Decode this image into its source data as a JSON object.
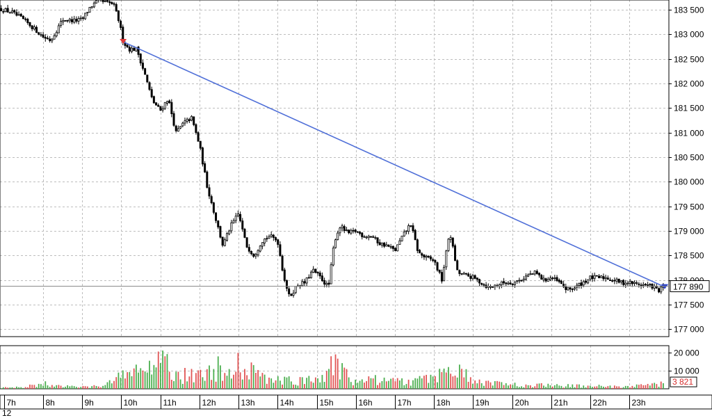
{
  "chart_data": [
    {
      "type": "candlestick",
      "x_unit": "hour",
      "x_ticks": [
        "7h",
        "8h",
        "9h",
        "10h",
        "11h",
        "12h",
        "13h",
        "14h",
        "15h",
        "16h",
        "17h",
        "18h",
        "19h",
        "20h",
        "21h",
        "22h",
        "23h"
      ],
      "date_label": "12",
      "y_ticks": [
        177000,
        177500,
        178000,
        178500,
        179000,
        179500,
        180000,
        180500,
        181000,
        181500,
        182000,
        182500,
        183000,
        183500
      ],
      "ylim": [
        176850,
        183700
      ],
      "grid": true,
      "last_price": 177890,
      "last_price_label": "177 890",
      "trendline": {
        "start": {
          "x": 10.05,
          "y": 182850
        },
        "end": {
          "x": 23.9,
          "y": 177860
        },
        "color": "#4f6fd8"
      },
      "close_path": [
        [
          6.9,
          183520
        ],
        [
          7.2,
          183450
        ],
        [
          7.5,
          183300
        ],
        [
          7.8,
          183100
        ],
        [
          8.0,
          182950
        ],
        [
          8.2,
          182880
        ],
        [
          8.5,
          183300
        ],
        [
          8.8,
          183280
        ],
        [
          9.0,
          183300
        ],
        [
          9.2,
          183550
        ],
        [
          9.4,
          183680
        ],
        [
          9.6,
          183650
        ],
        [
          9.8,
          183620
        ],
        [
          9.95,
          183250
        ],
        [
          10.05,
          182850
        ],
        [
          10.2,
          182700
        ],
        [
          10.4,
          182700
        ],
        [
          10.6,
          182200
        ],
        [
          10.8,
          181650
        ],
        [
          11.0,
          181450
        ],
        [
          11.2,
          181700
        ],
        [
          11.4,
          181000
        ],
        [
          11.6,
          181200
        ],
        [
          11.8,
          181300
        ],
        [
          12.0,
          180750
        ],
        [
          12.2,
          179900
        ],
        [
          12.4,
          179300
        ],
        [
          12.6,
          178700
        ],
        [
          12.8,
          179100
        ],
        [
          13.0,
          179350
        ],
        [
          13.2,
          178700
        ],
        [
          13.4,
          178500
        ],
        [
          13.6,
          178800
        ],
        [
          13.8,
          178900
        ],
        [
          14.0,
          178800
        ],
        [
          14.15,
          178100
        ],
        [
          14.3,
          177650
        ],
        [
          14.5,
          177900
        ],
        [
          14.7,
          177950
        ],
        [
          14.9,
          178200
        ],
        [
          15.1,
          178050
        ],
        [
          15.3,
          177850
        ],
        [
          15.45,
          178800
        ],
        [
          15.6,
          179100
        ],
        [
          15.8,
          178950
        ],
        [
          16.0,
          179000
        ],
        [
          16.2,
          178900
        ],
        [
          16.4,
          178900
        ],
        [
          16.6,
          178750
        ],
        [
          16.8,
          178700
        ],
        [
          17.0,
          178600
        ],
        [
          17.2,
          178900
        ],
        [
          17.4,
          179150
        ],
        [
          17.6,
          178550
        ],
        [
          17.8,
          178450
        ],
        [
          18.0,
          178400
        ],
        [
          18.2,
          178000
        ],
        [
          18.4,
          179000
        ],
        [
          18.6,
          178150
        ],
        [
          18.8,
          178100
        ],
        [
          19.0,
          178050
        ],
        [
          19.2,
          177950
        ],
        [
          19.4,
          177850
        ],
        [
          19.6,
          177900
        ],
        [
          19.8,
          177950
        ],
        [
          20.0,
          177950
        ],
        [
          20.2,
          178000
        ],
        [
          20.4,
          178100
        ],
        [
          20.6,
          178150
        ],
        [
          20.8,
          178000
        ],
        [
          21.0,
          178050
        ],
        [
          21.2,
          177950
        ],
        [
          21.4,
          177800
        ],
        [
          21.6,
          177850
        ],
        [
          21.8,
          177950
        ],
        [
          22.0,
          178050
        ],
        [
          22.2,
          178050
        ],
        [
          22.4,
          178050
        ],
        [
          22.6,
          178000
        ],
        [
          22.8,
          177950
        ],
        [
          23.0,
          177950
        ],
        [
          23.2,
          177920
        ],
        [
          23.4,
          177900
        ],
        [
          23.6,
          177870
        ],
        [
          23.75,
          177780
        ],
        [
          23.9,
          177890
        ]
      ],
      "volume_path": [
        [
          6.9,
          800
        ],
        [
          7.5,
          1500
        ],
        [
          8.0,
          4500
        ],
        [
          8.5,
          2000
        ],
        [
          9.0,
          1500
        ],
        [
          9.5,
          2000
        ],
        [
          10.0,
          9000
        ],
        [
          10.5,
          13000
        ],
        [
          11.0,
          20000
        ],
        [
          11.5,
          11000
        ],
        [
          12.0,
          9000
        ],
        [
          12.5,
          16000
        ],
        [
          13.0,
          18000
        ],
        [
          13.5,
          10000
        ],
        [
          14.0,
          9000
        ],
        [
          14.5,
          7000
        ],
        [
          15.0,
          6000
        ],
        [
          15.5,
          20000
        ],
        [
          16.0,
          5500
        ],
        [
          16.5,
          7000
        ],
        [
          17.0,
          7000
        ],
        [
          17.5,
          7000
        ],
        [
          18.0,
          7000
        ],
        [
          18.5,
          17000
        ],
        [
          19.0,
          6000
        ],
        [
          19.5,
          5000
        ],
        [
          20.0,
          3500
        ],
        [
          20.5,
          3000
        ],
        [
          21.0,
          2500
        ],
        [
          21.5,
          2500
        ],
        [
          22.0,
          2000
        ],
        [
          22.5,
          2000
        ],
        [
          23.0,
          2000
        ],
        [
          23.5,
          2500
        ],
        [
          23.9,
          3821
        ]
      ],
      "volume_ticks": [
        10000,
        20000
      ],
      "volume_tick_labels": [
        "10 000",
        "20 000"
      ],
      "volume_ylim": [
        0,
        24000
      ],
      "last_volume": 3821,
      "last_volume_label": "3 821",
      "colors": {
        "grid": "#bdbdbd",
        "up_candle": "#ffffff",
        "down_candle": "#000000",
        "volume_up": "#4caf50",
        "volume_down": "#e15555",
        "marker_start": "#e23a3a",
        "marker_end": "#2a40c8",
        "last_volume_text": "#d62b2b"
      }
    }
  ]
}
